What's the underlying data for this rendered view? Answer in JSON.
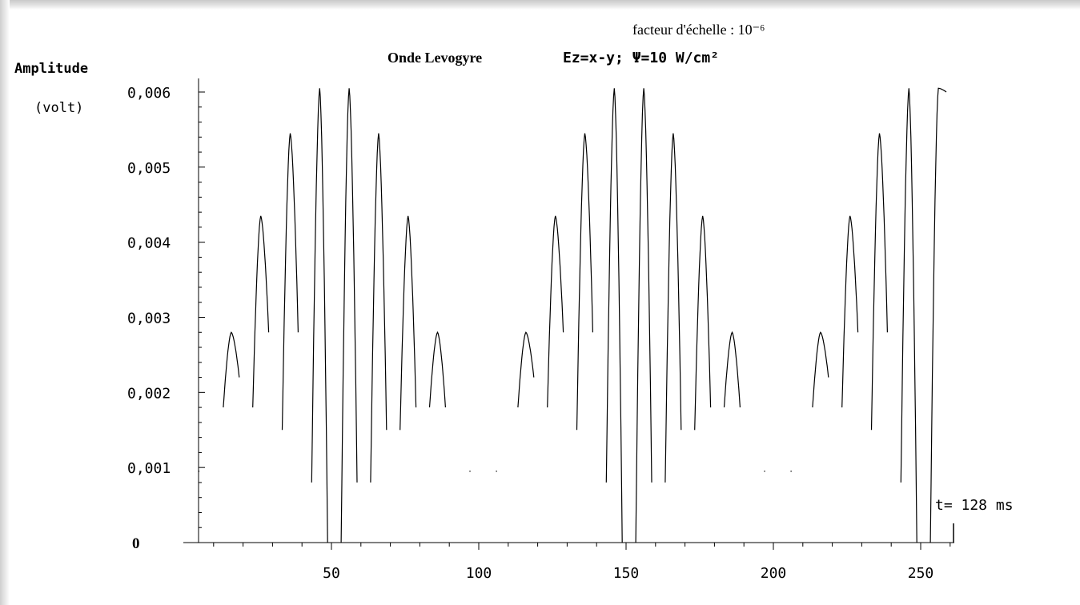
{
  "chart_data": {
    "type": "line",
    "title": "Onde  Levogyre",
    "formula": "Ez=x-y; Ψ=10 W/cm²",
    "scale_note": "facteur d'échelle : 10⁻⁶",
    "ylabel_line1": "Amplitude",
    "ylabel_line2": "(volt)",
    "time_label": "t= 128 ms",
    "xlim": [
      0,
      262
    ],
    "ylim": [
      0,
      0.0062
    ],
    "x_ticks": [
      50,
      100,
      150,
      200,
      250
    ],
    "x_tick_labels": [
      "50",
      "100",
      "150",
      "200",
      "250"
    ],
    "y_ticks": [
      0,
      0.001,
      0.002,
      0.003,
      0.004,
      0.005,
      0.006
    ],
    "y_tick_labels": [
      "0",
      "0,001",
      "0,002",
      "0,003",
      "0,004",
      "0,005",
      "0,006"
    ],
    "period": 100,
    "lobe_centers": [
      16,
      26,
      36,
      46,
      56,
      66,
      76,
      86,
      116,
      126,
      136,
      146,
      156,
      166,
      176,
      186,
      216,
      226,
      236,
      246,
      256
    ],
    "lobe_peaks": [
      0.0028,
      0.00435,
      0.00545,
      0.00605,
      0.00605,
      0.00545,
      0.00435,
      0.0028,
      0.0028,
      0.00435,
      0.00545,
      0.00605,
      0.00605,
      0.00545,
      0.00435,
      0.0028,
      0.0028,
      0.00435,
      0.00545,
      0.00605,
      0.00605
    ],
    "lobe_left_min": [
      0.0018,
      0.0018,
      0.0015,
      0.0008,
      0.0,
      0.0008,
      0.0015,
      0.0018,
      0.0018,
      0.0018,
      0.0015,
      0.0008,
      0.0,
      0.0008,
      0.0015,
      0.0018,
      0.0018,
      0.0018,
      0.0015,
      0.0008,
      0.0
    ],
    "lobe_right_min": [
      0.0022,
      0.0028,
      0.0028,
      0.0,
      0.0008,
      0.0015,
      0.0018,
      0.0018,
      0.0022,
      0.0028,
      0.0028,
      0.0,
      0.0008,
      0.0015,
      0.0018,
      0.0018,
      0.0022,
      0.0028,
      0.0028,
      0.0,
      0.006
    ],
    "isolated_points_x": [
      5,
      97,
      106,
      197,
      206
    ],
    "isolated_points_y": [
      0.00095,
      0.00095,
      0.00095,
      0.00095,
      0.00095
    ],
    "grid": false,
    "legend": "none"
  }
}
